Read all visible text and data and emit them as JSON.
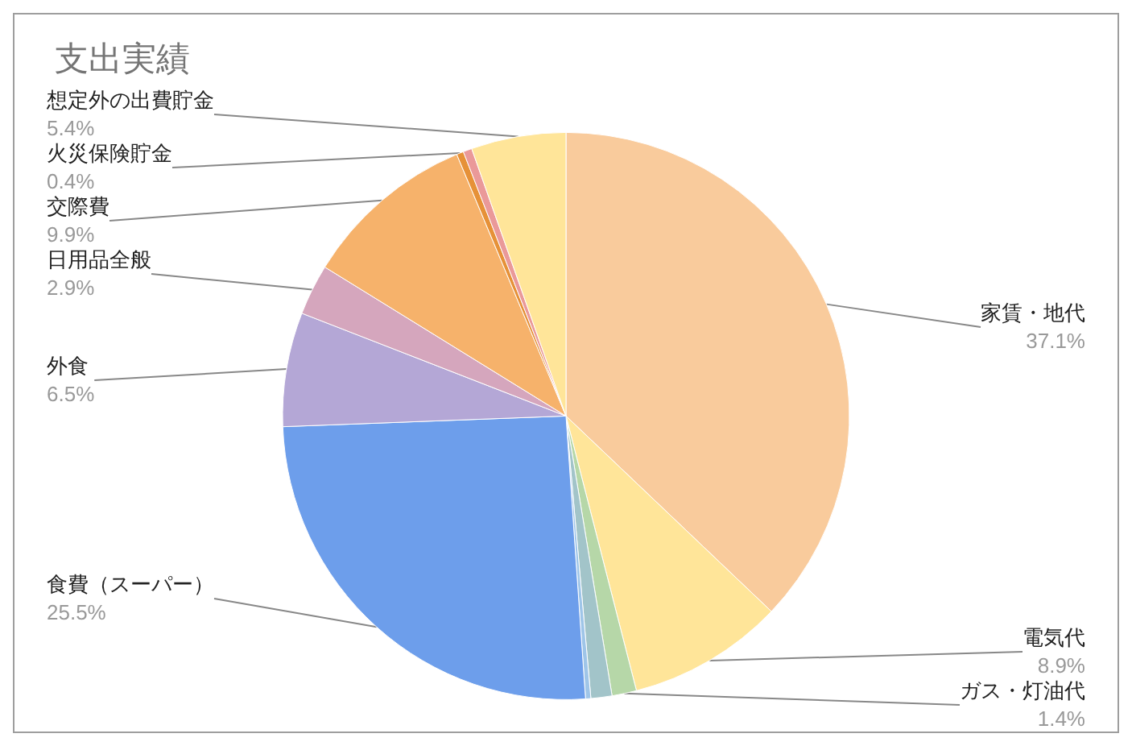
{
  "chart_data": {
    "type": "pie",
    "title": "支出実績",
    "categories": [
      "家賃・地代",
      "電気代",
      "ガス・灯油代",
      null,
      null,
      "食費（スーパー）",
      "外食",
      "日用品全般",
      "交際費",
      "火災保険貯金",
      null,
      "想定外の出費貯金"
    ],
    "values": [
      37.1,
      8.9,
      1.4,
      1.2,
      0.3,
      25.5,
      6.5,
      2.9,
      9.9,
      0.4,
      0.5,
      5.4
    ],
    "value_labels": [
      "37.1%",
      "8.9%",
      "1.4%",
      null,
      null,
      "25.5%",
      "6.5%",
      "2.9%",
      "9.9%",
      "0.4%",
      null,
      "5.4%"
    ],
    "colors": [
      "#f9cb9c",
      "#ffe599",
      "#b6d7a8",
      "#a2c4c9",
      "#9fc5e8",
      "#6d9eeb",
      "#b4a7d6",
      "#d5a6bd",
      "#f6b26b",
      "#e69138",
      "#ea9999",
      "#ffe599"
    ],
    "legend": false
  }
}
